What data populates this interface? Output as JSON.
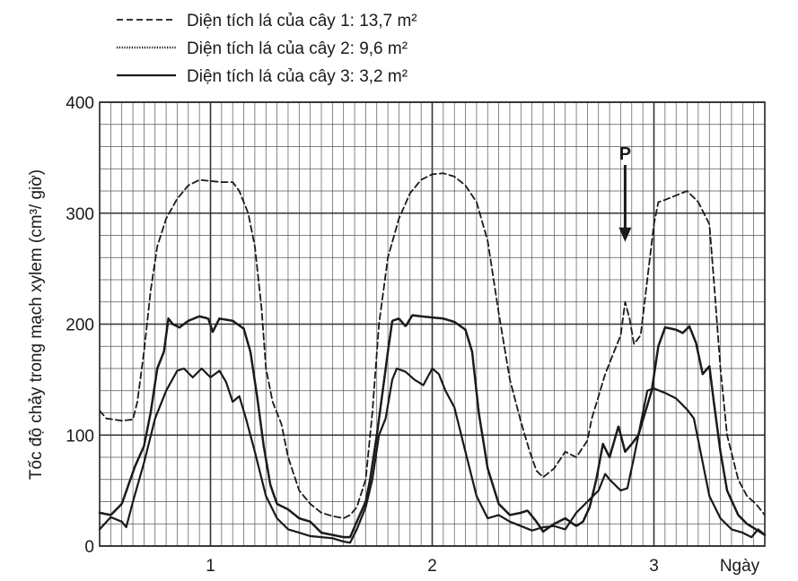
{
  "chart_data": {
    "type": "line",
    "ylabel": "Tốc độ chảy trong  mạch xylem (cm³/ giờ)",
    "xlabel": "Ngày",
    "ylim": [
      0,
      400
    ],
    "xlim": [
      0.5,
      3.5
    ],
    "yticks": [
      "0",
      "100",
      "200",
      "300",
      "400"
    ],
    "xticks": [
      "1",
      "2",
      "3"
    ],
    "grid": true,
    "legend_position": "top-left",
    "series": [
      {
        "name": "Diện tích lá của cây 1: 13,7 m²",
        "style": "dashed",
        "points": [
          [
            0.5,
            122
          ],
          [
            0.53,
            115
          ],
          [
            0.6,
            113
          ],
          [
            0.65,
            114
          ],
          [
            0.67,
            130
          ],
          [
            0.7,
            175
          ],
          [
            0.73,
            230
          ],
          [
            0.76,
            270
          ],
          [
            0.8,
            295
          ],
          [
            0.85,
            313
          ],
          [
            0.9,
            325
          ],
          [
            0.95,
            330
          ],
          [
            1.0,
            329
          ],
          [
            1.05,
            328
          ],
          [
            1.1,
            328
          ],
          [
            1.13,
            320
          ],
          [
            1.17,
            300
          ],
          [
            1.2,
            270
          ],
          [
            1.23,
            215
          ],
          [
            1.25,
            160
          ],
          [
            1.28,
            130
          ],
          [
            1.32,
            110
          ],
          [
            1.35,
            80
          ],
          [
            1.4,
            50
          ],
          [
            1.45,
            38
          ],
          [
            1.5,
            30
          ],
          [
            1.55,
            27
          ],
          [
            1.6,
            25
          ],
          [
            1.63,
            28
          ],
          [
            1.66,
            35
          ],
          [
            1.7,
            60
          ],
          [
            1.73,
            120
          ],
          [
            1.76,
            200
          ],
          [
            1.8,
            260
          ],
          [
            1.85,
            295
          ],
          [
            1.9,
            318
          ],
          [
            1.95,
            330
          ],
          [
            2.0,
            335
          ],
          [
            2.05,
            336
          ],
          [
            2.1,
            333
          ],
          [
            2.15,
            325
          ],
          [
            2.2,
            310
          ],
          [
            2.25,
            275
          ],
          [
            2.3,
            210
          ],
          [
            2.35,
            150
          ],
          [
            2.4,
            112
          ],
          [
            2.44,
            85
          ],
          [
            2.47,
            68
          ],
          [
            2.5,
            62
          ],
          [
            2.55,
            70
          ],
          [
            2.6,
            85
          ],
          [
            2.65,
            80
          ],
          [
            2.7,
            95
          ],
          [
            2.72,
            115
          ],
          [
            2.75,
            135
          ],
          [
            2.78,
            155
          ],
          [
            2.82,
            175
          ],
          [
            2.85,
            190
          ],
          [
            2.87,
            220
          ],
          [
            2.89,
            205
          ],
          [
            2.91,
            182
          ],
          [
            2.94,
            190
          ],
          [
            2.97,
            240
          ],
          [
            3.0,
            290
          ],
          [
            3.02,
            310
          ],
          [
            3.05,
            312
          ],
          [
            3.1,
            316
          ],
          [
            3.15,
            320
          ],
          [
            3.2,
            310
          ],
          [
            3.25,
            290
          ],
          [
            3.27,
            240
          ],
          [
            3.3,
            160
          ],
          [
            3.33,
            100
          ],
          [
            3.38,
            60
          ],
          [
            3.42,
            45
          ],
          [
            3.46,
            38
          ],
          [
            3.5,
            28
          ]
        ]
      },
      {
        "name": "Diện tích lá của cây 2: 9,6 m²",
        "style": "dotted",
        "points": [
          [
            0.5,
            30
          ],
          [
            0.55,
            28
          ],
          [
            0.6,
            38
          ],
          [
            0.63,
            55
          ],
          [
            0.66,
            72
          ],
          [
            0.7,
            90
          ],
          [
            0.73,
            120
          ],
          [
            0.76,
            160
          ],
          [
            0.79,
            175
          ],
          [
            0.81,
            205
          ],
          [
            0.83,
            200
          ],
          [
            0.86,
            197
          ],
          [
            0.9,
            203
          ],
          [
            0.95,
            207
          ],
          [
            0.99,
            205
          ],
          [
            1.01,
            193
          ],
          [
            1.04,
            205
          ],
          [
            1.1,
            203
          ],
          [
            1.15,
            196
          ],
          [
            1.18,
            175
          ],
          [
            1.21,
            135
          ],
          [
            1.24,
            90
          ],
          [
            1.27,
            55
          ],
          [
            1.3,
            38
          ],
          [
            1.35,
            33
          ],
          [
            1.4,
            25
          ],
          [
            1.45,
            22
          ],
          [
            1.5,
            12
          ],
          [
            1.55,
            10
          ],
          [
            1.6,
            8
          ],
          [
            1.63,
            8
          ],
          [
            1.66,
            22
          ],
          [
            1.7,
            40
          ],
          [
            1.72,
            60
          ],
          [
            1.75,
            100
          ],
          [
            1.78,
            145
          ],
          [
            1.8,
            175
          ],
          [
            1.82,
            203
          ],
          [
            1.85,
            205
          ],
          [
            1.88,
            198
          ],
          [
            1.91,
            208
          ],
          [
            1.95,
            207
          ],
          [
            2.0,
            206
          ],
          [
            2.05,
            205
          ],
          [
            2.1,
            202
          ],
          [
            2.15,
            195
          ],
          [
            2.18,
            175
          ],
          [
            2.21,
            120
          ],
          [
            2.25,
            70
          ],
          [
            2.3,
            38
          ],
          [
            2.35,
            28
          ],
          [
            2.4,
            30
          ],
          [
            2.43,
            32
          ],
          [
            2.47,
            22
          ],
          [
            2.5,
            13
          ],
          [
            2.55,
            20
          ],
          [
            2.6,
            25
          ],
          [
            2.65,
            18
          ],
          [
            2.68,
            22
          ],
          [
            2.71,
            35
          ],
          [
            2.74,
            60
          ],
          [
            2.77,
            92
          ],
          [
            2.8,
            80
          ],
          [
            2.84,
            108
          ],
          [
            2.87,
            85
          ],
          [
            2.9,
            92
          ],
          [
            2.93,
            100
          ],
          [
            2.96,
            120
          ],
          [
            2.99,
            140
          ],
          [
            3.02,
            180
          ],
          [
            3.05,
            197
          ],
          [
            3.1,
            195
          ],
          [
            3.13,
            192
          ],
          [
            3.16,
            198
          ],
          [
            3.19,
            183
          ],
          [
            3.22,
            155
          ],
          [
            3.25,
            162
          ],
          [
            3.27,
            130
          ],
          [
            3.3,
            85
          ],
          [
            3.33,
            50
          ],
          [
            3.38,
            28
          ],
          [
            3.42,
            20
          ],
          [
            3.46,
            15
          ],
          [
            3.5,
            10
          ]
        ]
      },
      {
        "name": "Diện tích lá của cây 3: 3,2 m²",
        "style": "solid",
        "points": [
          [
            0.5,
            15
          ],
          [
            0.55,
            26
          ],
          [
            0.6,
            22
          ],
          [
            0.62,
            17
          ],
          [
            0.65,
            40
          ],
          [
            0.7,
            75
          ],
          [
            0.75,
            115
          ],
          [
            0.8,
            140
          ],
          [
            0.85,
            158
          ],
          [
            0.88,
            160
          ],
          [
            0.92,
            152
          ],
          [
            0.96,
            160
          ],
          [
            1.0,
            152
          ],
          [
            1.04,
            158
          ],
          [
            1.07,
            148
          ],
          [
            1.1,
            130
          ],
          [
            1.13,
            135
          ],
          [
            1.16,
            115
          ],
          [
            1.2,
            85
          ],
          [
            1.25,
            45
          ],
          [
            1.3,
            25
          ],
          [
            1.35,
            15
          ],
          [
            1.4,
            12
          ],
          [
            1.45,
            9
          ],
          [
            1.5,
            8
          ],
          [
            1.55,
            7
          ],
          [
            1.6,
            4
          ],
          [
            1.63,
            3
          ],
          [
            1.66,
            15
          ],
          [
            1.7,
            35
          ],
          [
            1.73,
            60
          ],
          [
            1.76,
            100
          ],
          [
            1.79,
            115
          ],
          [
            1.82,
            150
          ],
          [
            1.84,
            160
          ],
          [
            1.88,
            157
          ],
          [
            1.92,
            150
          ],
          [
            1.96,
            145
          ],
          [
            2.0,
            160
          ],
          [
            2.03,
            155
          ],
          [
            2.06,
            140
          ],
          [
            2.1,
            125
          ],
          [
            2.15,
            85
          ],
          [
            2.2,
            45
          ],
          [
            2.25,
            25
          ],
          [
            2.3,
            28
          ],
          [
            2.35,
            22
          ],
          [
            2.4,
            18
          ],
          [
            2.45,
            14
          ],
          [
            2.5,
            17
          ],
          [
            2.55,
            18
          ],
          [
            2.6,
            15
          ],
          [
            2.65,
            30
          ],
          [
            2.7,
            40
          ],
          [
            2.75,
            50
          ],
          [
            2.78,
            65
          ],
          [
            2.8,
            60
          ],
          [
            2.85,
            50
          ],
          [
            2.88,
            52
          ],
          [
            2.91,
            80
          ],
          [
            2.94,
            110
          ],
          [
            2.97,
            140
          ],
          [
            3.0,
            142
          ],
          [
            3.05,
            138
          ],
          [
            3.1,
            133
          ],
          [
            3.15,
            123
          ],
          [
            3.18,
            115
          ],
          [
            3.21,
            85
          ],
          [
            3.25,
            45
          ],
          [
            3.3,
            25
          ],
          [
            3.35,
            15
          ],
          [
            3.4,
            12
          ],
          [
            3.44,
            8
          ],
          [
            3.47,
            15
          ],
          [
            3.5,
            10
          ]
        ]
      }
    ],
    "annotations": [
      {
        "label": "P",
        "x": 2.87,
        "y": 300,
        "arrow": "down"
      }
    ]
  }
}
